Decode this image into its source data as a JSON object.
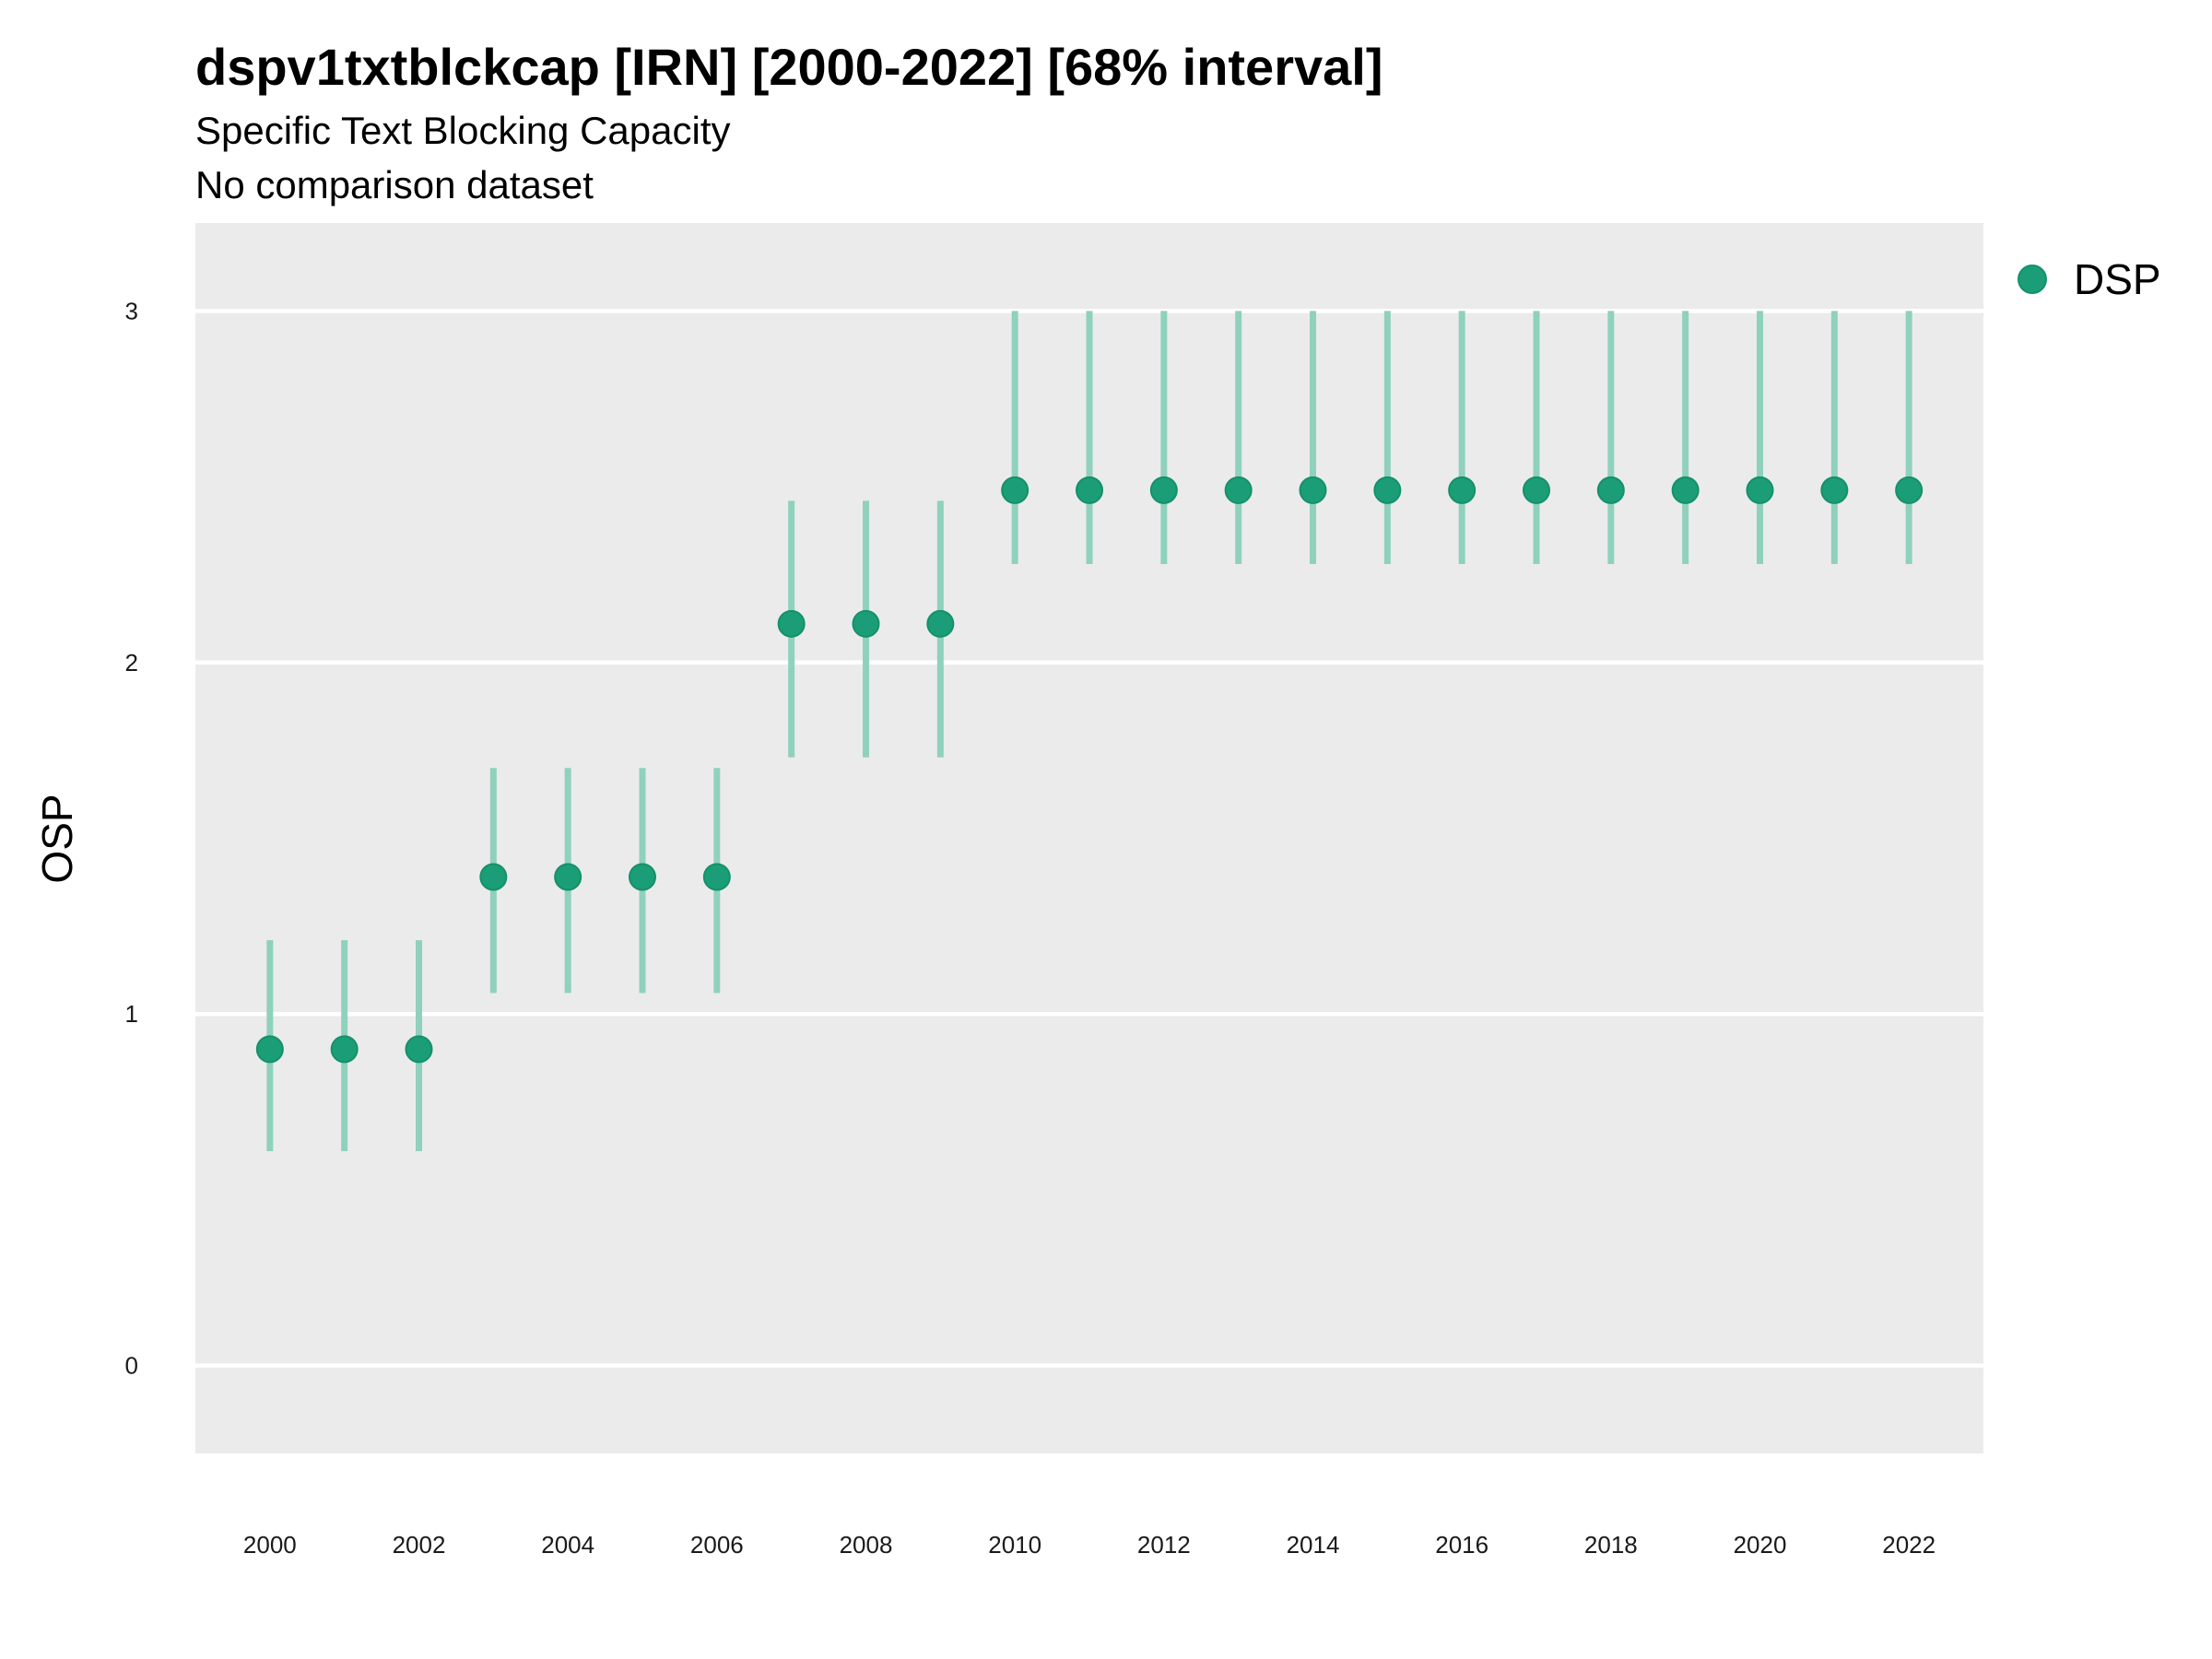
{
  "chart_data": {
    "type": "scatter",
    "title": "dspv1txtblckcap [IRN] [2000-2022] [68% interval]",
    "subtitle": "Specific Text Blocking Capacity",
    "caption": "No comparison dataset",
    "xlabel": "",
    "ylabel": "OSP",
    "xlim": [
      1999,
      2023
    ],
    "ylim": [
      -0.25,
      3.25
    ],
    "x_ticks": [
      2000,
      2002,
      2004,
      2006,
      2008,
      2010,
      2012,
      2014,
      2016,
      2018,
      2020,
      2022
    ],
    "x_tick_labels": [
      "2000",
      "2002",
      "2004",
      "2006",
      "2008",
      "2010",
      "2012",
      "2014",
      "2016",
      "2018",
      "2020",
      "2022"
    ],
    "y_ticks": [
      0,
      1,
      2,
      3
    ],
    "y_tick_labels": [
      "0",
      "1",
      "2",
      "3"
    ],
    "grid": true,
    "legend_position": "right",
    "series": [
      {
        "name": "DSP",
        "color": "#1b9e77",
        "x": [
          2000,
          2001,
          2002,
          2003,
          2004,
          2005,
          2006,
          2007,
          2008,
          2009,
          2010,
          2011,
          2012,
          2013,
          2014,
          2015,
          2016,
          2017,
          2018,
          2019,
          2020,
          2021,
          2022
        ],
        "y": [
          0.9,
          0.9,
          0.9,
          1.39,
          1.39,
          1.39,
          1.39,
          2.11,
          2.11,
          2.11,
          2.49,
          2.49,
          2.49,
          2.49,
          2.49,
          2.49,
          2.49,
          2.49,
          2.49,
          2.49,
          2.49,
          2.49,
          2.49
        ],
        "lower": [
          0.61,
          0.61,
          0.61,
          1.06,
          1.06,
          1.06,
          1.06,
          1.73,
          1.73,
          1.73,
          2.28,
          2.28,
          2.28,
          2.28,
          2.28,
          2.28,
          2.28,
          2.28,
          2.28,
          2.28,
          2.28,
          2.28,
          2.28
        ],
        "upper": [
          1.21,
          1.21,
          1.21,
          1.7,
          1.7,
          1.7,
          1.7,
          2.46,
          2.46,
          2.46,
          3.0,
          3.0,
          3.0,
          3.0,
          3.0,
          3.0,
          3.0,
          3.0,
          3.0,
          3.0,
          3.0,
          3.0,
          3.0
        ]
      }
    ]
  },
  "colors": {
    "panel_background": "#ebebeb",
    "grid_line": "#ffffff",
    "point": "#1b9e77",
    "interval": "#8fd1bd"
  }
}
